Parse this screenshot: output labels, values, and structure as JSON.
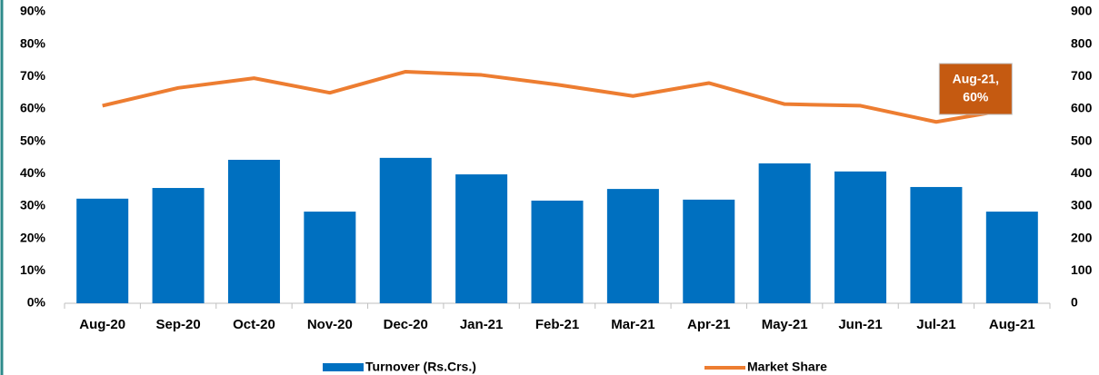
{
  "chart_data": {
    "type": "bar_line",
    "categories": [
      "Aug-20",
      "Sep-20",
      "Oct-20",
      "Nov-20",
      "Dec-20",
      "Jan-21",
      "Feb-21",
      "Mar-21",
      "Apr-21",
      "May-21",
      "Jun-21",
      "Jul-21",
      "Aug-21"
    ],
    "series": [
      {
        "name": "Turnover (Rs.Crs.)",
        "type": "bar",
        "color": "#0070c0",
        "axis": "y2",
        "values": [
          323,
          356,
          443,
          283,
          449,
          398,
          317,
          353,
          320,
          432,
          407,
          359,
          283
        ]
      },
      {
        "name": "Market Share",
        "type": "line",
        "color": "#ed7d31",
        "values": [
          61,
          66.5,
          69.5,
          65,
          71.5,
          70.5,
          67.5,
          64,
          68,
          61.5,
          61,
          56,
          60
        ]
      }
    ],
    "annotation": {
      "lines": [
        "Aug-21,",
        "60%"
      ],
      "color": "#c55a11",
      "category_index": 12
    },
    "ylim": [
      0,
      90
    ],
    "yticks": [
      {
        "value": 0,
        "label": "0%"
      },
      {
        "value": 10,
        "label": "10%"
      },
      {
        "value": 20,
        "label": "20%"
      },
      {
        "value": 30,
        "label": "30%"
      },
      {
        "value": 40,
        "label": "40%"
      },
      {
        "value": 50,
        "label": "50%"
      },
      {
        "value": 60,
        "label": "60%"
      },
      {
        "value": 70,
        "label": "70%"
      },
      {
        "value": 80,
        "label": "80%"
      },
      {
        "value": 90,
        "label": "90%"
      }
    ],
    "y2lim": [
      0,
      900
    ],
    "y2ticks": [
      0,
      100,
      200,
      300,
      400,
      500,
      600,
      700,
      800,
      900
    ],
    "legend": "bottom"
  }
}
